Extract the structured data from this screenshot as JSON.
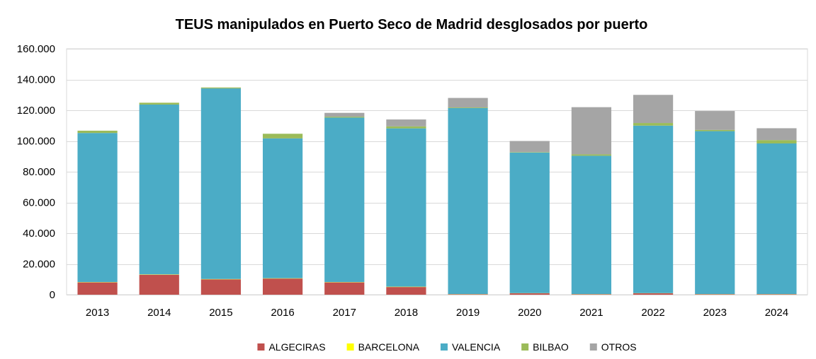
{
  "chart_data": {
    "type": "bar",
    "stacked": true,
    "title": "TEUS manipulados en Puerto Seco de Madrid desglosados por puerto",
    "xlabel": "",
    "ylabel": "",
    "ylim": [
      0,
      160000
    ],
    "y_ticks": [
      0,
      20000,
      40000,
      60000,
      80000,
      100000,
      120000,
      140000,
      160000
    ],
    "y_tick_labels": [
      "0",
      "20.000",
      "40.000",
      "60.000",
      "80.000",
      "100.000",
      "120.000",
      "140.000",
      "160.000"
    ],
    "grid": true,
    "legend_position": "bottom",
    "categories": [
      "2013",
      "2014",
      "2015",
      "2016",
      "2017",
      "2018",
      "2019",
      "2020",
      "2021",
      "2022",
      "2023",
      "2024"
    ],
    "series": [
      {
        "name": "ALGECIRAS",
        "color": "#C0504D",
        "values": [
          8000,
          13000,
          10000,
          10500,
          8000,
          5000,
          300,
          900,
          300,
          900,
          300,
          300
        ]
      },
      {
        "name": "BARCELONA",
        "color": "#FFFF00",
        "values": [
          200,
          200,
          200,
          200,
          200,
          200,
          100,
          100,
          100,
          100,
          100,
          100
        ]
      },
      {
        "name": "VALENCIA",
        "color": "#4BACC6",
        "values": [
          97000,
          110500,
          124000,
          91000,
          107000,
          103000,
          121000,
          91500,
          90000,
          109000,
          106000,
          98000
        ]
      },
      {
        "name": "BILBAO",
        "color": "#9BBB59",
        "values": [
          1500,
          1200,
          600,
          3000,
          600,
          1300,
          400,
          300,
          900,
          1700,
          800,
          2200
        ]
      },
      {
        "name": "OTROS",
        "color": "#A5A5A5",
        "values": [
          0,
          0,
          0,
          0,
          2500,
          4500,
          6200,
          7200,
          30700,
          18300,
          12300,
          7700
        ]
      }
    ]
  }
}
